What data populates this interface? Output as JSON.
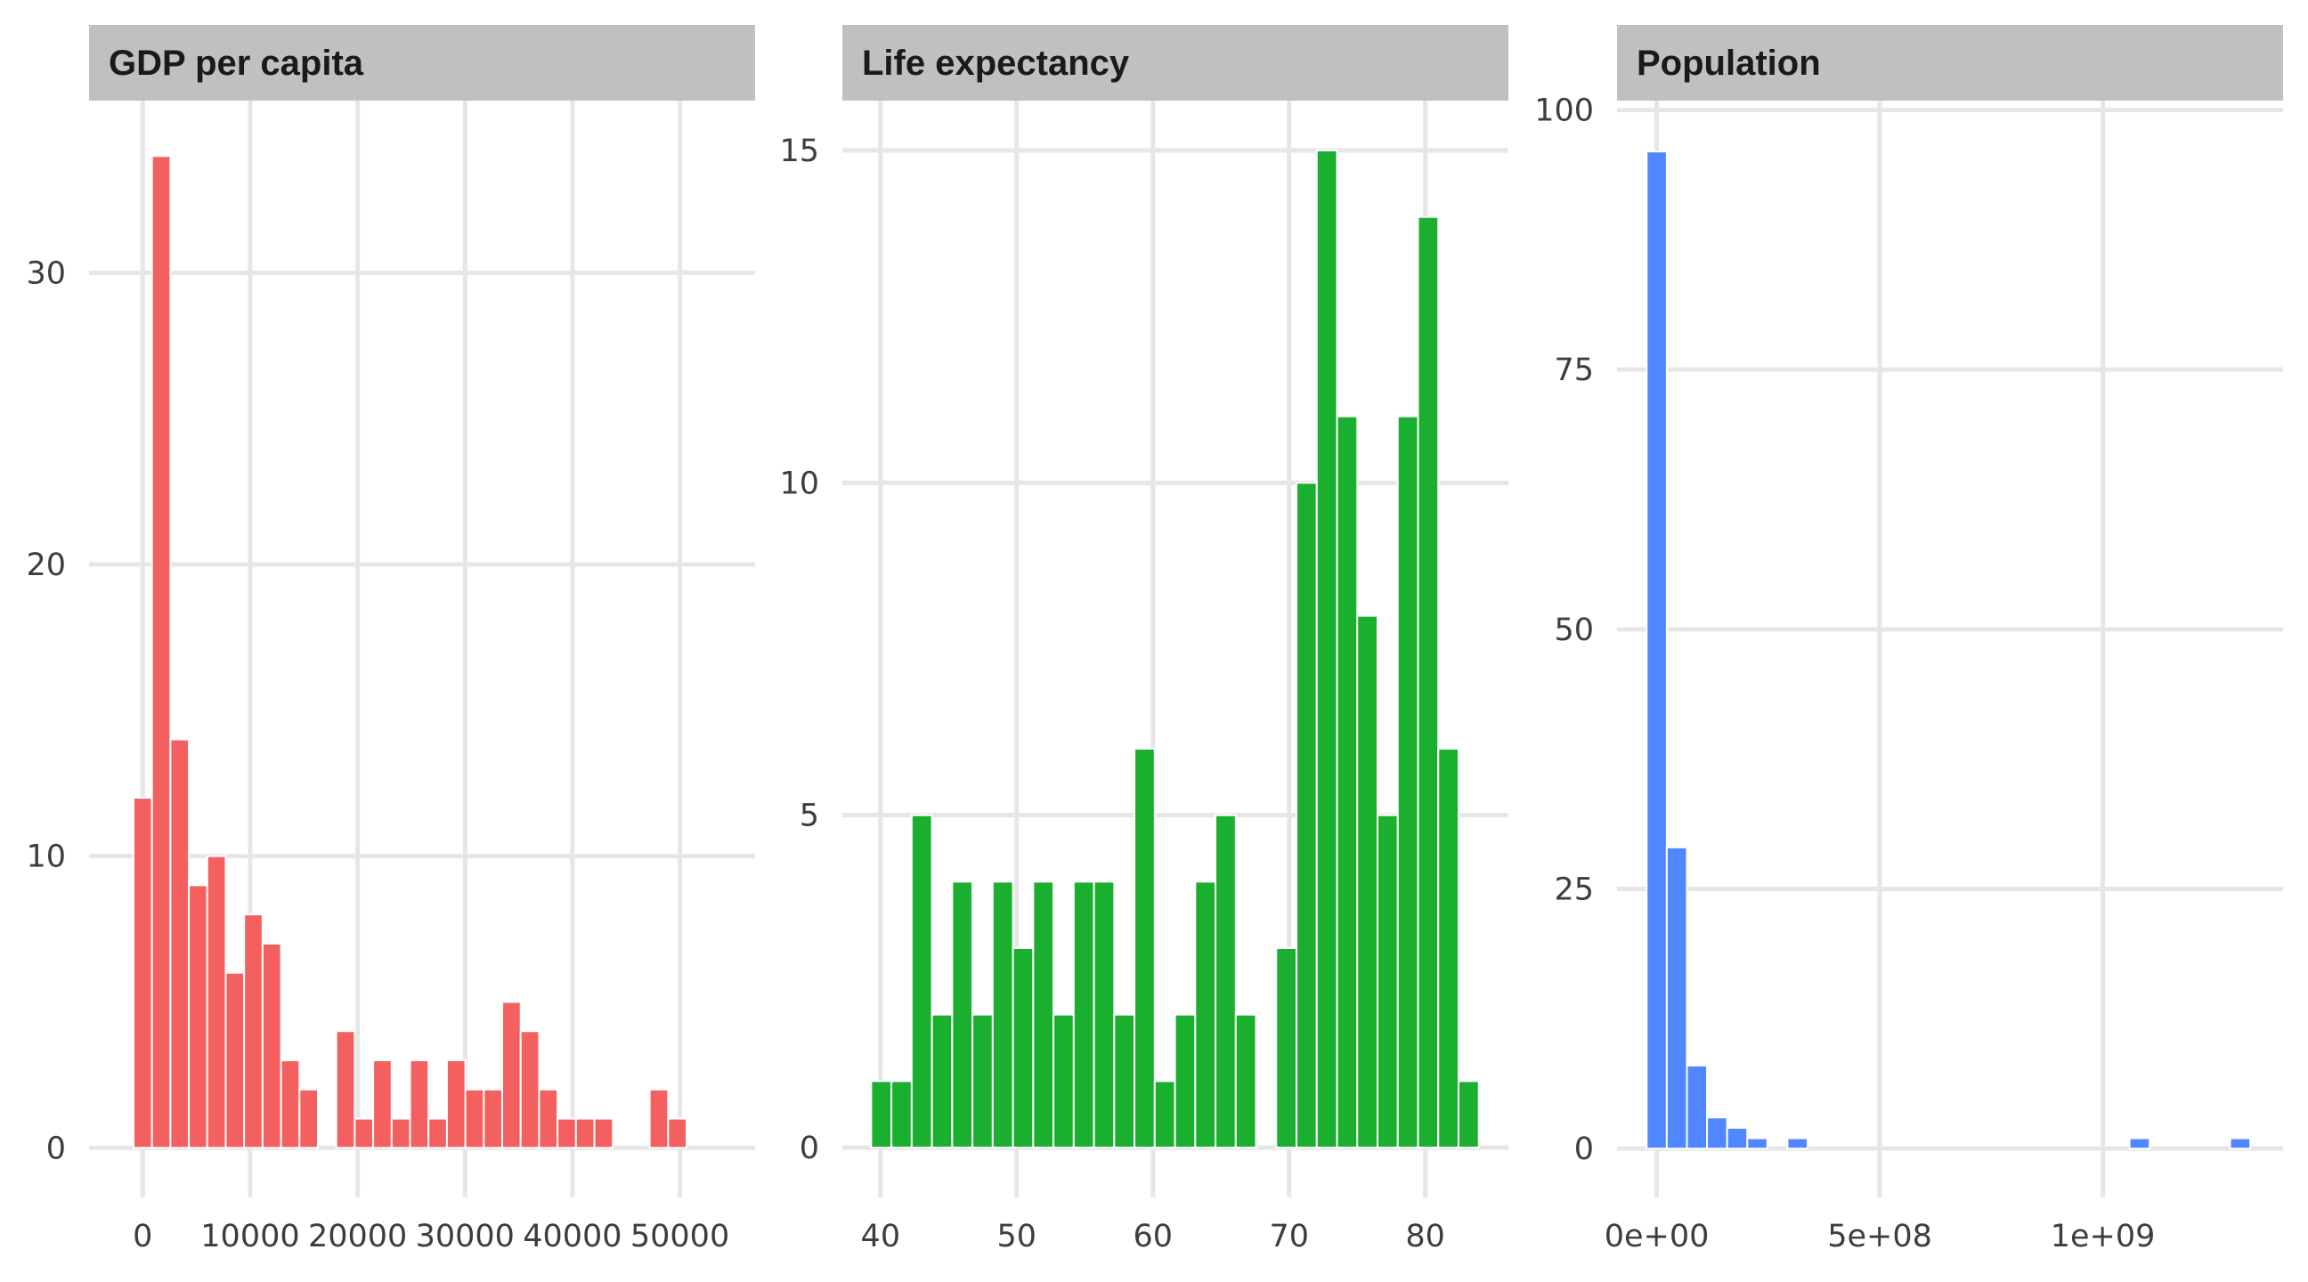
{
  "chart_data": [
    {
      "type": "bar",
      "subtype": "histogram",
      "title": "GDP per capita",
      "color": "#f4605f",
      "xlabel": "",
      "ylabel": "",
      "bins": 30,
      "bin_width": 1716,
      "first_bin_center": 0,
      "counts": [
        12,
        34,
        14,
        9,
        10,
        6,
        8,
        7,
        3,
        2,
        0,
        4,
        1,
        3,
        1,
        3,
        1,
        3,
        2,
        2,
        5,
        4,
        2,
        1,
        1,
        1,
        0,
        0,
        2,
        1
      ],
      "xlim": [
        -5000,
        57000
      ],
      "ylim": [
        -1.7,
        35.9
      ],
      "x_ticks": [
        0,
        10000,
        20000,
        30000,
        40000,
        50000
      ],
      "x_tick_labels": [
        "0",
        "10000",
        "20000",
        "30000",
        "40000",
        "50000"
      ],
      "y_ticks": [
        0,
        10,
        20,
        30
      ],
      "y_tick_labels": [
        "0",
        "10",
        "20",
        "30"
      ],
      "grid": true
    },
    {
      "type": "bar",
      "subtype": "histogram",
      "title": "Life expectancy",
      "color": "#1aaf2e",
      "xlabel": "",
      "ylabel": "",
      "bins": 30,
      "bin_width": 1.487,
      "first_bin_center": 40.06,
      "counts": [
        1,
        1,
        5,
        2,
        4,
        2,
        4,
        3,
        4,
        2,
        4,
        4,
        2,
        6,
        1,
        2,
        4,
        5,
        2,
        0,
        3,
        10,
        15,
        11,
        8,
        5,
        11,
        14,
        6,
        1
      ],
      "xlim": [
        37.2,
        86.1
      ],
      "ylim": [
        -0.75,
        15.75
      ],
      "x_ticks": [
        40,
        50,
        60,
        70,
        80
      ],
      "x_tick_labels": [
        "40",
        "50",
        "60",
        "70",
        "80"
      ],
      "y_ticks": [
        0,
        5,
        10,
        15
      ],
      "y_tick_labels": [
        "0",
        "5",
        "10",
        "15"
      ],
      "grid": true
    },
    {
      "type": "bar",
      "subtype": "histogram",
      "title": "Population",
      "color": "#5087ff",
      "xlabel": "",
      "ylabel": "",
      "bins": 30,
      "bin_width": 45100000,
      "first_bin_center": 0,
      "counts": [
        96,
        29,
        8,
        3,
        2,
        1,
        0,
        1,
        0,
        0,
        0,
        0,
        0,
        0,
        0,
        0,
        0,
        0,
        0,
        0,
        0,
        0,
        0,
        0,
        1,
        0,
        0,
        0,
        0,
        1
      ],
      "xlim": [
        -89000000,
        1404000000
      ],
      "ylim": [
        -4.7,
        100.9
      ],
      "x_ticks": [
        0,
        500000000,
        1000000000
      ],
      "x_tick_labels": [
        "0e+00",
        "5e+08",
        "1e+09"
      ],
      "y_ticks": [
        0,
        25,
        50,
        75,
        100
      ],
      "y_tick_labels": [
        "0",
        "25",
        "50",
        "75",
        "100"
      ],
      "grid": true
    }
  ],
  "theme": {
    "strip_fill": "#c0c0c0",
    "grid_color": "#e6e6e6",
    "text_color": "#3d3d3d",
    "strip_text_color": "#1a1a1a"
  }
}
